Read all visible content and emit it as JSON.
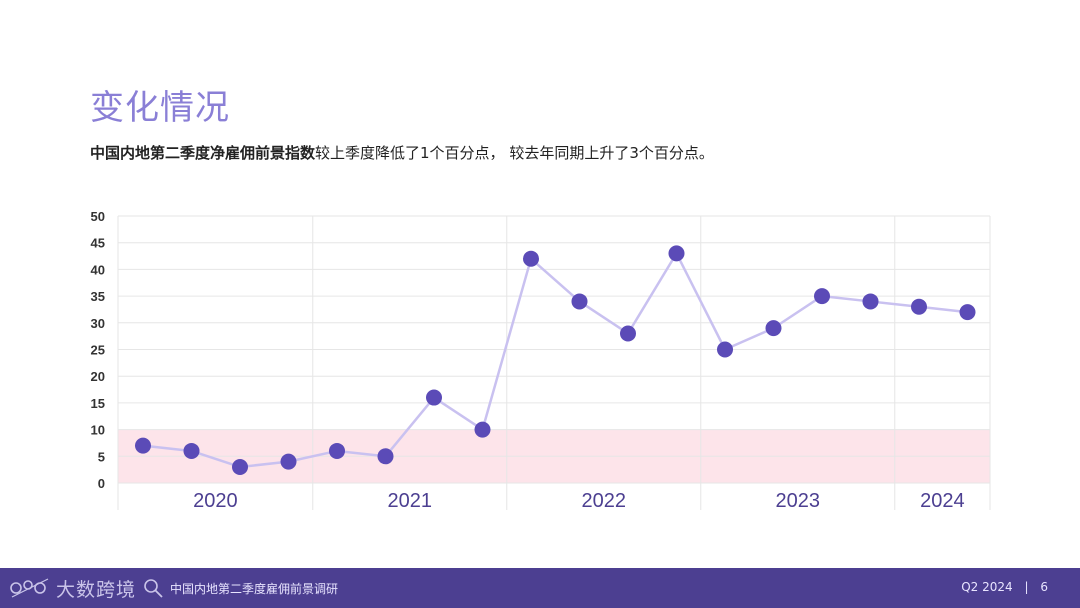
{
  "page": {
    "title": "变化情况",
    "subtitle_bold": "中国内地第二季度净雇佣前景指数",
    "subtitle_rest": "较上季度降低了1个百分点， 较去年同期上升了3个百分点。"
  },
  "footer": {
    "logo_text": "大数跨境",
    "title": "中国内地第二季度雇佣前景调研",
    "period": "Q2 2024",
    "separator": "|",
    "page_number": "6"
  },
  "colors": {
    "title": "#8a7fd6",
    "line": "#c9c1f0",
    "point": "#5b4bb7",
    "band": "#fde4ea",
    "footer": "#4c3f91",
    "year_label": "#4c3f91"
  },
  "chart_data": {
    "type": "line",
    "years": [
      "2020",
      "2021",
      "2022",
      "2023",
      "2024"
    ],
    "x": [
      "2020Q1",
      "2020Q2",
      "2020Q3",
      "2020Q4",
      "2021Q1",
      "2021Q2",
      "2021Q3",
      "2021Q4",
      "2022Q1",
      "2022Q2",
      "2022Q3",
      "2022Q4",
      "2023Q1",
      "2023Q2",
      "2023Q3",
      "2023Q4",
      "2024Q1",
      "2024Q2"
    ],
    "series": [
      {
        "values": [
          7,
          6,
          3,
          4,
          6,
          5,
          16,
          10,
          42,
          34,
          28,
          43,
          25,
          29,
          35,
          34,
          33,
          32
        ]
      }
    ],
    "ylim": [
      0,
      50
    ],
    "yticks": [
      0,
      5,
      10,
      15,
      20,
      25,
      30,
      35,
      40,
      45,
      50
    ],
    "highlight_band": [
      0,
      10
    ],
    "grid": true,
    "xlabel": "",
    "ylabel": ""
  }
}
